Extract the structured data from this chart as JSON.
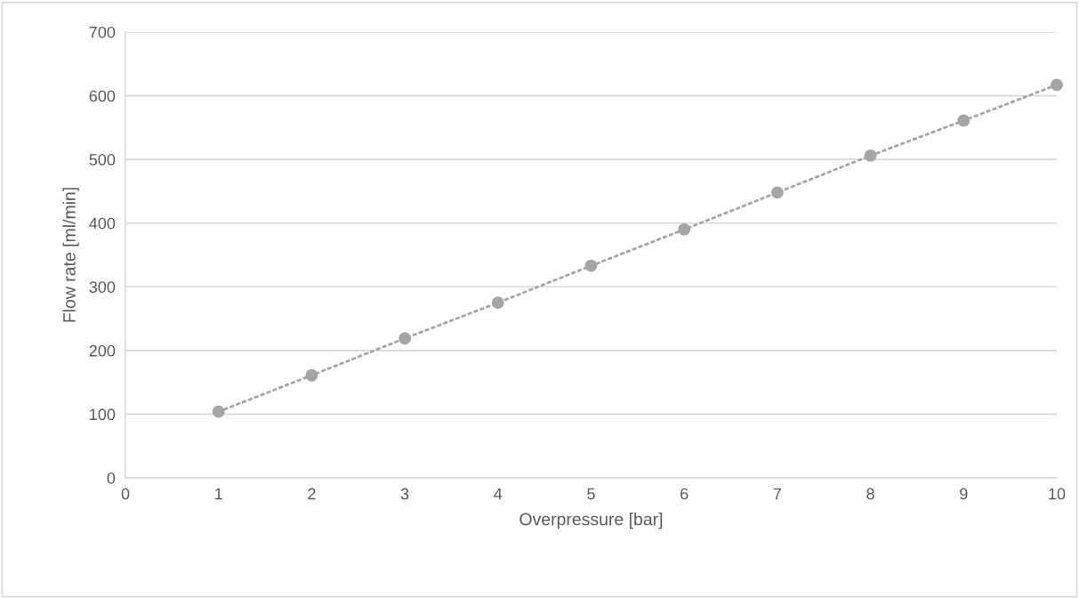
{
  "chart_data": {
    "type": "line",
    "xlabel": "Overpressure [bar]",
    "ylabel": "Flow rate [ml/min]",
    "x": [
      1,
      2,
      3,
      4,
      5,
      6,
      7,
      8,
      9,
      10
    ],
    "series": [
      {
        "color": "#a5a5a5",
        "values": [
          104,
          161,
          219,
          275,
          333,
          390,
          448,
          506,
          561,
          617
        ]
      }
    ],
    "xlim": [
      0,
      10
    ],
    "xticks": [
      0,
      1,
      2,
      3,
      4,
      5,
      6,
      7,
      8,
      9,
      10
    ],
    "ylim": [
      0,
      700
    ],
    "yticks": [
      0,
      100,
      200,
      300,
      400,
      500,
      600,
      700
    ],
    "grid": "y",
    "marker": "circle",
    "line_style": "dotted"
  }
}
